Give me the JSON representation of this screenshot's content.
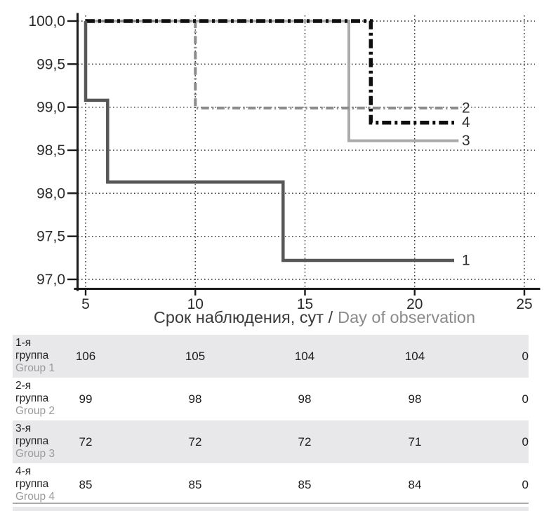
{
  "chart": {
    "y_axis": {
      "tick_labels": [
        "100,0",
        "99,5",
        "99,0",
        "98,5",
        "98,0",
        "97,5",
        "97,0"
      ],
      "tick_values": [
        100,
        99.5,
        99,
        98.5,
        98,
        97.5,
        97
      ]
    },
    "x_axis": {
      "tick_labels": [
        "5",
        "10",
        "15",
        "20",
        "25"
      ],
      "tick_values": [
        5,
        10,
        15,
        20,
        25
      ],
      "title_ru": "Срок наблюдения, сут /",
      "title_en": "Day of observation"
    }
  },
  "chart_data": {
    "type": "line",
    "subtype": "kaplan-meier-step",
    "title": "",
    "xlabel": "Срок наблюдения, сут / Day of observation",
    "ylabel": "",
    "xlim": [
      4.6,
      25.3
    ],
    "ylim": [
      96.9,
      100.05
    ],
    "grid": true,
    "legend_position": "line-end-labels-right",
    "series": [
      {
        "name": "1",
        "group_ru": "1-я группа",
        "group_en": "Group 1",
        "color": "#575757",
        "line_style": "solid",
        "dash": "",
        "width": 4.5,
        "zorder": 4,
        "end_label": "1",
        "steps": [
          [
            5,
            100
          ],
          [
            5,
            99.08
          ],
          [
            6,
            99.08
          ],
          [
            6,
            98.13
          ],
          [
            14,
            98.13
          ],
          [
            14,
            97.22
          ],
          [
            21.8,
            97.22
          ]
        ]
      },
      {
        "name": "2",
        "group_ru": "2-я группа",
        "group_en": "Group 2",
        "color": "#8c8c8c",
        "line_style": "dash-dot",
        "dash": "11 4.5 2.2 4.5",
        "width": 4,
        "zorder": 2,
        "end_label": "2",
        "steps": [
          [
            5,
            100
          ],
          [
            10,
            100
          ],
          [
            10,
            98.99
          ],
          [
            22,
            98.99
          ]
        ]
      },
      {
        "name": "3",
        "group_ru": "3-я группа",
        "group_en": "Group 3",
        "color": "#ababab",
        "line_style": "solid",
        "dash": "",
        "width": 4,
        "zorder": 1,
        "end_label": "3",
        "steps": [
          [
            5,
            100
          ],
          [
            17,
            100
          ],
          [
            17,
            98.61
          ],
          [
            22,
            98.61
          ]
        ]
      },
      {
        "name": "4",
        "group_ru": "4-я группа",
        "group_en": "Group 4",
        "color": "#0f0f0f",
        "line_style": "dash-dot",
        "dash": "13 5 4 5",
        "width": 5.5,
        "zorder": 3,
        "end_label": "4",
        "steps": [
          [
            5,
            100
          ],
          [
            18,
            100
          ],
          [
            18,
            98.82
          ],
          [
            21.8,
            98.82
          ]
        ]
      }
    ]
  },
  "risk_table": {
    "time_points": [
      5,
      10,
      15,
      20,
      25
    ],
    "rows": [
      {
        "label_ru_lines": [
          "1-я",
          "группа"
        ],
        "label_en": "Group 1",
        "values": [
          "106",
          "105",
          "104",
          "104",
          "0"
        ]
      },
      {
        "label_ru_lines": [
          "2-я",
          "группа"
        ],
        "label_en": "Group 2",
        "values": [
          "99",
          "98",
          "98",
          "98",
          "0"
        ]
      },
      {
        "label_ru_lines": [
          "3-я",
          "группа"
        ],
        "label_en": "Group 3",
        "values": [
          "72",
          "72",
          "72",
          "71",
          "0"
        ]
      },
      {
        "label_ru_lines": [
          "4-я",
          "группа"
        ],
        "label_en": "Group 4",
        "values": [
          "85",
          "85",
          "85",
          "84",
          "0"
        ]
      }
    ]
  },
  "colors": {
    "background": "#ffffff",
    "axis": "#1a1a1a",
    "grid_dots": "#2f2f2f",
    "tick_label": "#2b2b2b",
    "axis_title_ru": "#3b3b3b",
    "axis_title_en": "#8a8a8a",
    "row_band": "#e8e8ea",
    "group_en_text": "#9b9b9b",
    "value_text": "#1c1c1c",
    "divider": "#a9a9a9"
  }
}
